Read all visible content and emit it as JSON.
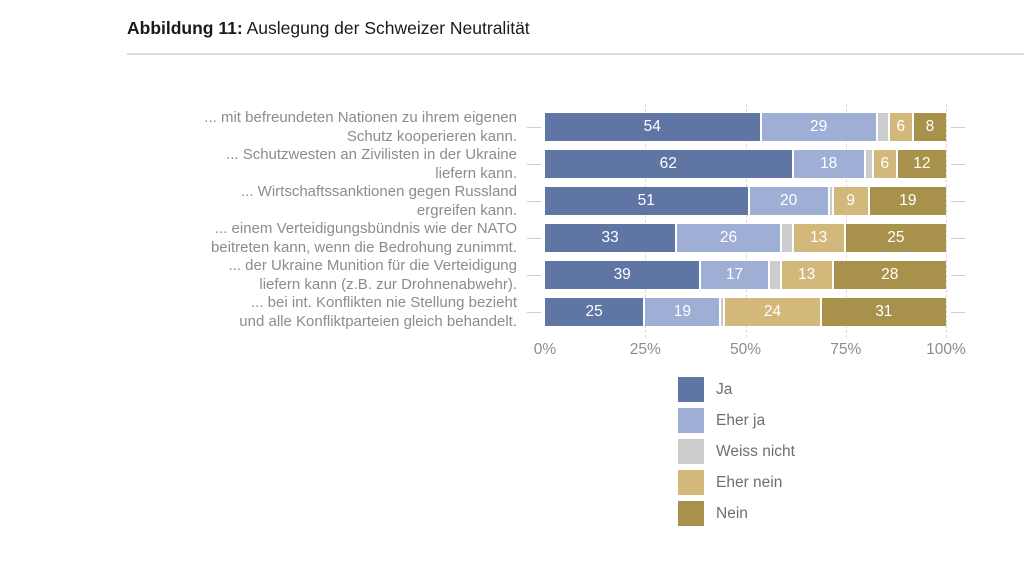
{
  "title": {
    "prefix": "Abbildung 11:",
    "text": " Auslegung der Schweizer Neutralität"
  },
  "colors": {
    "ja": "#5f75a4",
    "eher_ja": "#9eaed5",
    "weiss_nicht": "#cccccc",
    "eher_nein": "#d3b87c",
    "nein": "#a8914b",
    "grid": "#d9d9d9",
    "tick": "#cfcfcf",
    "category_text": "#8c8c8c",
    "axis_text": "#8c8c8c",
    "legend_text": "#6f6f6f",
    "value_text": "#ffffff"
  },
  "chart_data": {
    "type": "bar",
    "stacked": true,
    "orientation": "horizontal",
    "grid": "dashed-vertical",
    "xlim": [
      0,
      100
    ],
    "x_ticks": [
      {
        "label": "0%",
        "value": 0
      },
      {
        "label": "25%",
        "value": 25
      },
      {
        "label": "50%",
        "value": 50
      },
      {
        "label": "75%",
        "value": 75
      },
      {
        "label": "100%",
        "value": 100
      }
    ],
    "categories": [
      "... mit befreundeten Nationen zu ihrem eigenen\nSchutz kooperieren kann.",
      "... Schutzwesten an Zivilisten in der Ukraine\nliefern kann.",
      "... Wirtschaftssanktionen gegen Russland\nergreifen kann.",
      "... einem Verteidigungsbündnis wie der NATO\nbeitreten kann, wenn die Bedrohung zunimmt.",
      "... der Ukraine Munition für die Verteidigung\nliefern kann (z.B. zur Drohnenabwehr).",
      "... bei int. Konflikten nie Stellung bezieht\nund alle Konfliktparteien gleich behandelt."
    ],
    "series": [
      {
        "name": "Ja",
        "color": "#5f75a4",
        "values": [
          54,
          62,
          51,
          33,
          39,
          25
        ]
      },
      {
        "name": "Eher ja",
        "color": "#9eaed5",
        "values": [
          29,
          18,
          20,
          26,
          17,
          19
        ]
      },
      {
        "name": "Weiss nicht",
        "color": "#cccccc",
        "values": [
          3,
          2,
          1,
          3,
          3,
          1
        ]
      },
      {
        "name": "Eher nein",
        "color": "#d3b87c",
        "values": [
          6,
          6,
          9,
          13,
          13,
          24
        ]
      },
      {
        "name": "Nein",
        "color": "#a8914b",
        "values": [
          8,
          12,
          19,
          25,
          28,
          31
        ]
      }
    ],
    "value_label_min": 5,
    "legend_position": "bottom-right",
    "legend": [
      "Ja",
      "Eher ja",
      "Weiss nicht",
      "Eher nein",
      "Nein"
    ]
  }
}
